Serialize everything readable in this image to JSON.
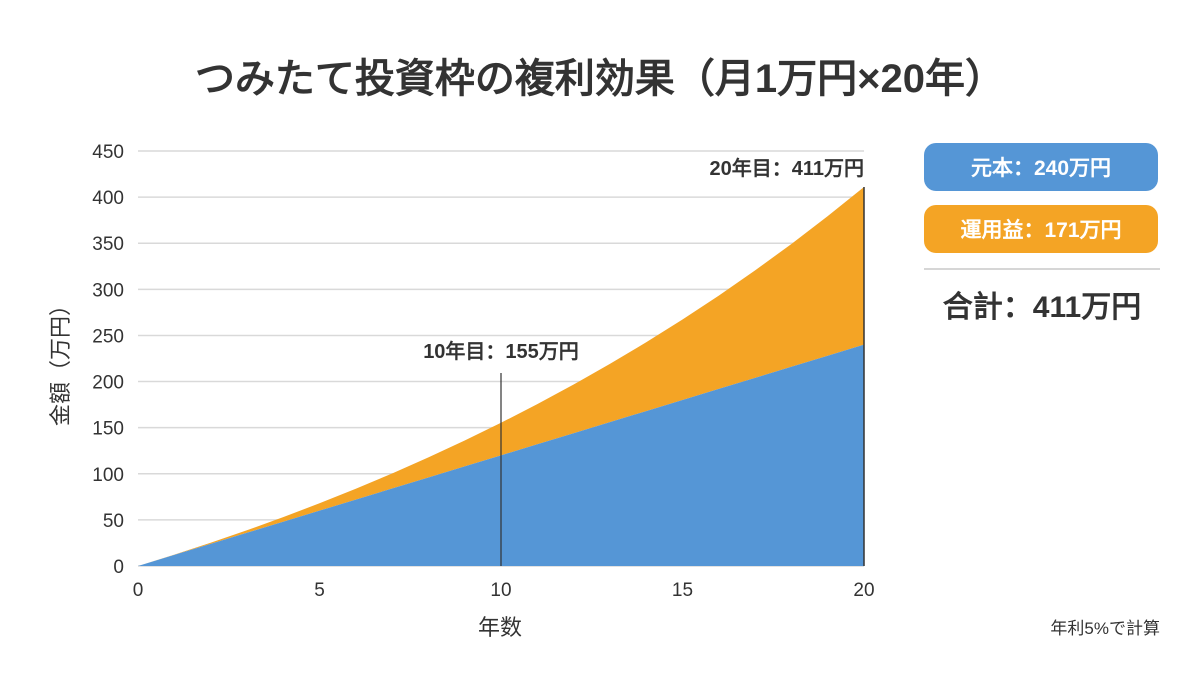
{
  "chart_data": {
    "type": "area",
    "title": "つみたて投資枠の複利効果（月1万円×20年）",
    "xlabel": "年数",
    "ylabel": "金額（万円）",
    "xlim": [
      0,
      20
    ],
    "ylim": [
      0,
      450
    ],
    "xticks": [
      0,
      5,
      10,
      15,
      20
    ],
    "yticks": [
      0,
      50,
      100,
      150,
      200,
      250,
      300,
      350,
      400,
      450
    ],
    "grid": "horizontal",
    "stacked": true,
    "x": [
      0,
      1,
      2,
      3,
      4,
      5,
      6,
      7,
      8,
      9,
      10,
      11,
      12,
      13,
      14,
      15,
      16,
      17,
      18,
      19,
      20
    ],
    "series": [
      {
        "name": "元本",
        "color": "#5596d6",
        "values": [
          0,
          12,
          24,
          36,
          48,
          60,
          72,
          84,
          96,
          108,
          120,
          132,
          144,
          156,
          168,
          180,
          192,
          204,
          216,
          228,
          240
        ]
      },
      {
        "name": "運用益",
        "color": "#f4a425",
        "total_values": [
          0,
          12.28,
          25.19,
          38.75,
          53.01,
          68.01,
          83.76,
          100.33,
          117.74,
          136.04,
          155.28,
          175.51,
          196.76,
          219.11,
          242.6,
          267.29,
          293.24,
          320.52,
          349.2,
          379.35,
          411.03
        ]
      }
    ],
    "annotations": [
      {
        "x": 10,
        "y": 155,
        "text": "10年目：155万円"
      },
      {
        "x": 20,
        "y": 411,
        "text": "20年目：411万円"
      }
    ]
  },
  "legend": {
    "principal": "元本：240万円",
    "gain": "運用益：171万円",
    "total": "合計：411万円",
    "placement": "right"
  },
  "note": "年利5%で計算"
}
